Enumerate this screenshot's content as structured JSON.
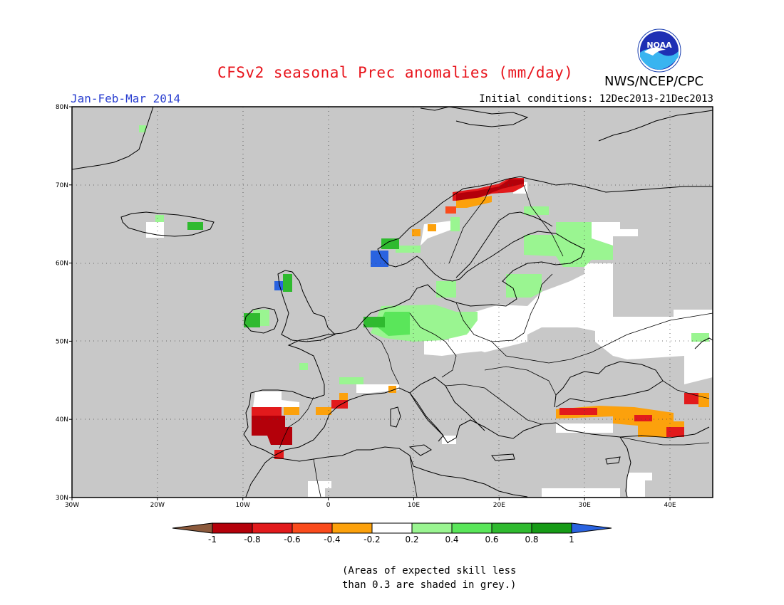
{
  "header": {
    "title": "CFSv2 seasonal Prec anomalies (mm/day)",
    "organization": "NWS/NCEP/CPC",
    "logo_text": "NOAA",
    "season": "Jan-Feb-Mar 2014",
    "initial_conditions": "Initial conditions: 12Dec2013-21Dec2013"
  },
  "map": {
    "projection": "lat-lon",
    "lon_range": [
      -30,
      45
    ],
    "lat_range": [
      30,
      80
    ],
    "lon_ticks": [
      "30W",
      "20W",
      "10W",
      "0",
      "10E",
      "20E",
      "30E",
      "40E"
    ],
    "lat_ticks": [
      "30N",
      "40N",
      "50N",
      "60N",
      "70N",
      "80N"
    ],
    "mask_color": "#c8c8c8",
    "grid": "dotted"
  },
  "colorbar": {
    "labels": [
      "-1",
      "-0.8",
      "-0.6",
      "-0.4",
      "-0.2",
      "0.2",
      "0.4",
      "0.6",
      "0.8",
      "1"
    ],
    "colors": [
      "#8c5a3c",
      "#b4000a",
      "#e21a1c",
      "#fa4b1c",
      "#fca10c",
      "#ffffff",
      "#9af591",
      "#5ae65a",
      "#2fba2f",
      "#169b16",
      "#2a63e0"
    ]
  },
  "footnote": {
    "line1": "(Areas of expected skill less",
    "line2": "than 0.3 are shaded in grey.)"
  }
}
